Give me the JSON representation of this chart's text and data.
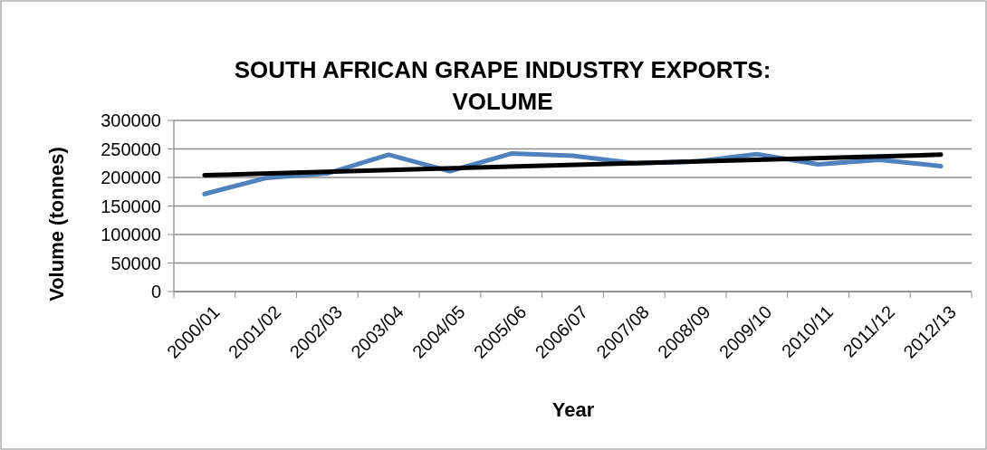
{
  "chart_data": {
    "type": "line",
    "title": "SOUTH AFRICAN GRAPE INDUSTRY EXPORTS:\nVOLUME",
    "xlabel": "Year",
    "ylabel": "Volume (tonnes)",
    "categories": [
      "2000/01",
      "2001/02",
      "2002/03",
      "2003/04",
      "2004/05",
      "2005/06",
      "2006/07",
      "2007/08",
      "2008/09",
      "2009/10",
      "2010/11",
      "2011/12",
      "2012/13"
    ],
    "series": [
      {
        "color": "#4f81bd",
        "values": [
          171000,
          199000,
          207000,
          240000,
          211000,
          242000,
          238000,
          225000,
          228000,
          241000,
          223000,
          231000,
          220000
        ]
      },
      {
        "type": "line",
        "color": "#000000",
        "x": [
          "2000/01",
          "2012/13"
        ],
        "values": [
          204000,
          240000
        ]
      }
    ],
    "ylim": [
      0,
      300000
    ],
    "yticks": [
      0,
      50000,
      100000,
      150000,
      200000,
      250000,
      300000
    ],
    "grid": "y"
  }
}
